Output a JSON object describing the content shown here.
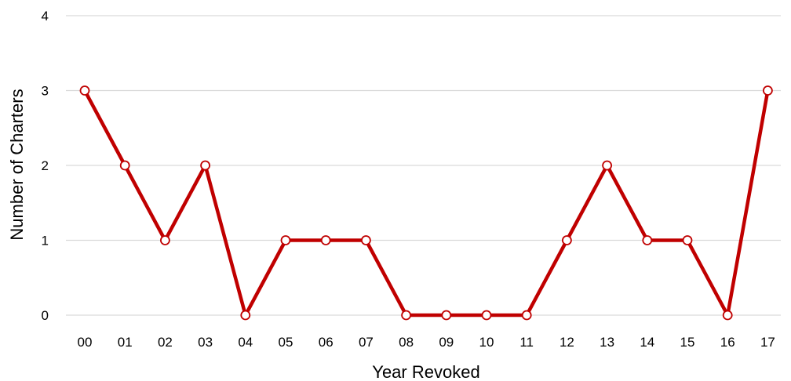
{
  "chart_data": {
    "type": "line",
    "title": "",
    "xlabel": "Year Revoked",
    "ylabel": "Number of Charters",
    "categories": [
      "00",
      "01",
      "02",
      "03",
      "04",
      "05",
      "06",
      "07",
      "08",
      "09",
      "10",
      "11",
      "12",
      "13",
      "14",
      "15",
      "16",
      "17"
    ],
    "series": [
      {
        "values": [
          3,
          2,
          1,
          2,
          0,
          1,
          1,
          1,
          0,
          0,
          0,
          0,
          1,
          2,
          1,
          1,
          0,
          3
        ],
        "color": "#C00000"
      }
    ],
    "ylim": [
      0,
      4
    ],
    "yticks": [
      "0",
      "1",
      "2",
      "3",
      "4"
    ],
    "grid": true,
    "gridColor": "#D9D9D9",
    "markerFill": "#FFFFFF",
    "legend": "none"
  }
}
